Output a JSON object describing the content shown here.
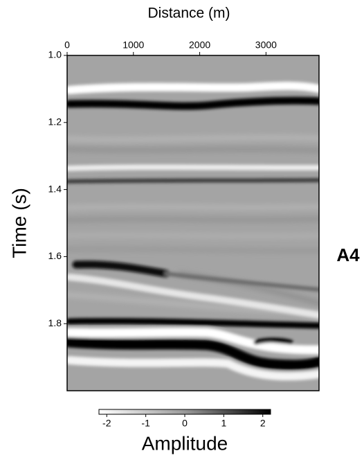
{
  "chart_data": {
    "type": "heatmap",
    "x_label": "Distance (m)",
    "y_label": "Time (s)",
    "annotation": "A4",
    "colorbar_label": "Amplitude",
    "xlim": [
      0,
      3800
    ],
    "xticks": [
      0,
      1000,
      2000,
      3000
    ],
    "ylim": [
      1,
      2
    ],
    "yticks": [
      {
        "value": 1,
        "label": "1.0"
      },
      {
        "value": 1.2,
        "label": "1.2"
      },
      {
        "value": 1.4,
        "label": "1.4"
      },
      {
        "value": 1.6,
        "label": "1.6"
      },
      {
        "value": 1.8,
        "label": "1.8"
      }
    ],
    "clim": [
      -2.2,
      2.2
    ],
    "cticks": [
      -2,
      -1,
      0,
      1,
      2
    ]
  }
}
